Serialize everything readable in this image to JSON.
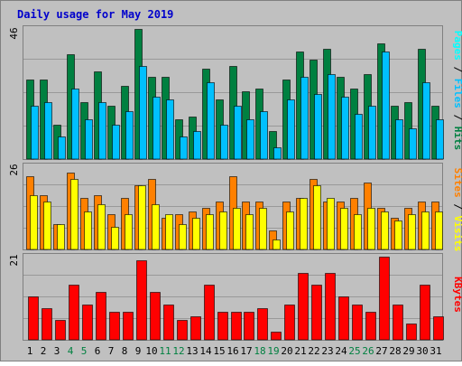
{
  "title": "Daily usage for May 2019",
  "panels": {
    "top": {
      "ymax_label": "46",
      "legend": {
        "pages": "Pages",
        "files": "Files",
        "hits": "Hits",
        "sep": " / "
      }
    },
    "middle": {
      "ymax_label": "26",
      "legend": {
        "sites": "Sites",
        "visits": "Visits",
        "sep": " / "
      }
    },
    "bottom": {
      "ymax_label": "21",
      "legend": {
        "kbytes": "KBytes"
      }
    }
  },
  "colors": {
    "background": "#c0c0c0",
    "title": "#0000cc",
    "hits": "#008040",
    "files": "#00c0ff",
    "pages": "#00ffff",
    "visits": "#ff8000",
    "sites": "#ffff00",
    "kbytes": "#ff0000",
    "grid": "#999999",
    "weekday_label": "#000000",
    "weekend_label": "#008040"
  },
  "chart_data": {
    "type": "bar",
    "categories": [
      "1",
      "2",
      "3",
      "4",
      "5",
      "6",
      "7",
      "8",
      "9",
      "10",
      "11",
      "12",
      "13",
      "14",
      "15",
      "16",
      "17",
      "18",
      "19",
      "20",
      "21",
      "22",
      "23",
      "24",
      "25",
      "26",
      "27",
      "28",
      "29",
      "30",
      "31"
    ],
    "weekend_days": [
      "4",
      "5",
      "11",
      "12",
      "18",
      "19",
      "25",
      "26"
    ],
    "panels": [
      {
        "id": "top",
        "ymax": 46,
        "series": [
          {
            "name": "Hits",
            "values": [
              28,
              28,
              12,
              37,
              20,
              31,
              19,
              26,
              46,
              29,
              29,
              14,
              15,
              32,
              21,
              33,
              24,
              25,
              10,
              28,
              38,
              35,
              39,
              29,
              25,
              30,
              41,
              19,
              20,
              39,
              19
            ]
          },
          {
            "name": "Files",
            "values": [
              19,
              20,
              8,
              25,
              14,
              20,
              12,
              17,
              33,
              22,
              21,
              8,
              10,
              27,
              12,
              19,
              14,
              17,
              4,
              21,
              29,
              23,
              30,
              22,
              16,
              19,
              38,
              14,
              11,
              27,
              14
            ]
          },
          {
            "name": "Pages",
            "values": [
              0,
              0,
              0,
              0,
              0,
              0,
              0,
              0,
              0,
              0,
              0,
              0,
              0,
              0,
              0,
              0,
              0,
              0,
              0,
              0,
              0,
              0,
              0,
              0,
              0,
              0,
              0,
              0,
              0,
              0,
              0
            ]
          }
        ]
      },
      {
        "id": "middle",
        "ymax": 26,
        "series": [
          {
            "name": "Visits",
            "values": [
              23,
              17,
              8,
              24,
              16,
              17,
              11,
              16,
              20,
              22,
              10,
              11,
              12,
              13,
              15,
              23,
              15,
              15,
              6,
              15,
              16,
              22,
              15,
              15,
              16,
              21,
              13,
              10,
              13,
              15,
              15
            ]
          },
          {
            "name": "Sites",
            "values": [
              17,
              15,
              8,
              22,
              12,
              14,
              7,
              11,
              20,
              14,
              11,
              8,
              10,
              11,
              12,
              13,
              11,
              13,
              3,
              12,
              16,
              20,
              16,
              13,
              11,
              13,
              12,
              9,
              11,
              12,
              12
            ]
          }
        ]
      },
      {
        "id": "bottom",
        "ymax": 21,
        "series": [
          {
            "name": "KBytes",
            "values": [
              11,
              8,
              5,
              14,
              9,
              12,
              7,
              7,
              20,
              12,
              9,
              5,
              6,
              14,
              7,
              7,
              7,
              8,
              2,
              9,
              17,
              14,
              17,
              11,
              9,
              7,
              21,
              9,
              4,
              14,
              6
            ]
          }
        ]
      }
    ]
  }
}
